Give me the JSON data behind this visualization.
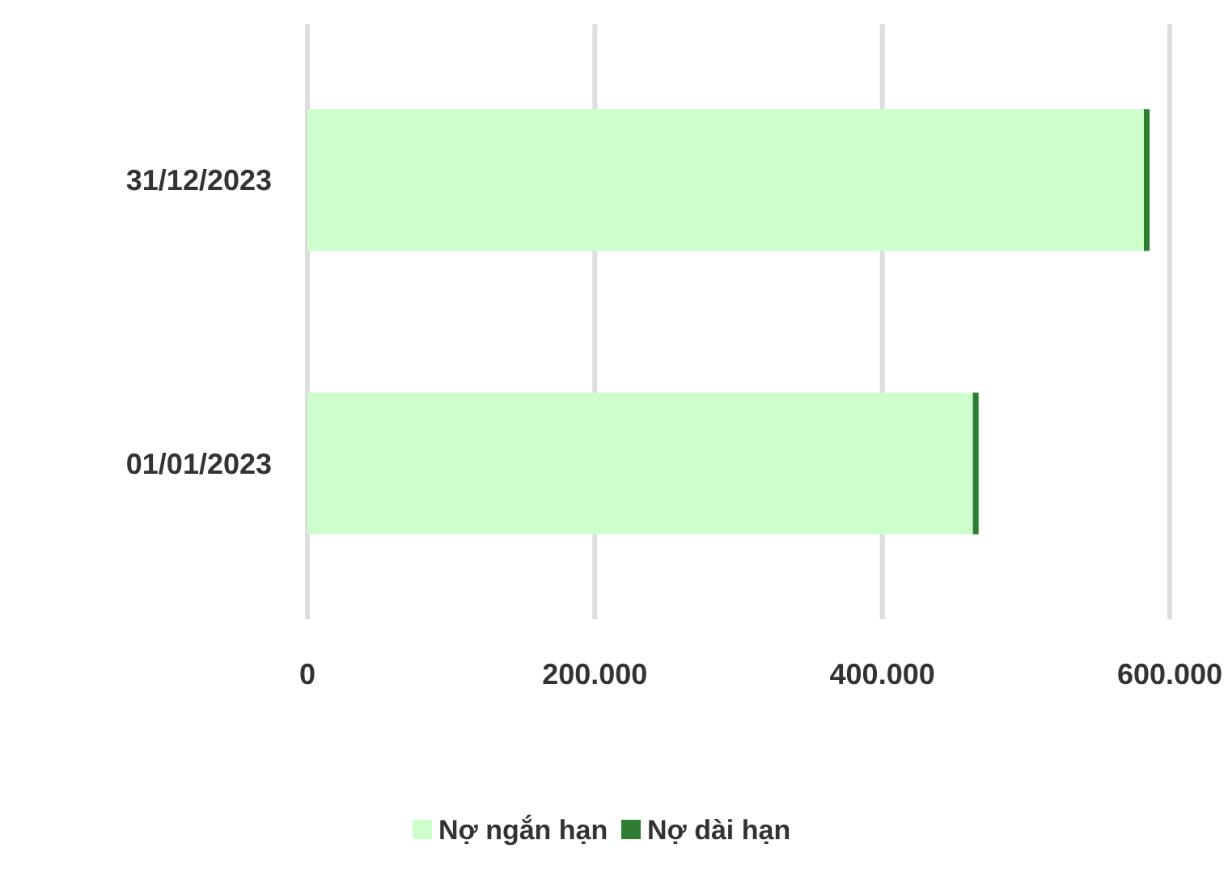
{
  "chart_data": {
    "type": "bar",
    "orientation": "horizontal",
    "stacked": true,
    "categories": [
      "31/12/2023",
      "01/01/2023"
    ],
    "series": [
      {
        "name": "Nợ ngắn hạn",
        "color": "#ccffcc",
        "values": [
          582000,
          463000
        ]
      },
      {
        "name": "Nợ dài hạn",
        "color": "#2e7d32",
        "values": [
          4000,
          4000
        ]
      }
    ],
    "xlim": [
      0,
      600000
    ],
    "xticks": [
      {
        "value": 0,
        "label": "0"
      },
      {
        "value": 200000,
        "label": "200.000"
      },
      {
        "value": 400000,
        "label": "400.000"
      },
      {
        "value": 600000,
        "label": "600.000"
      }
    ],
    "grid": "x",
    "legend": "bottom"
  }
}
